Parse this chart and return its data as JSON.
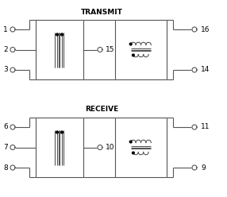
{
  "title_transmit": "TRANSMIT",
  "title_receive": "RECEIVE",
  "bg_color": "#ffffff",
  "line_color": "#555555",
  "text_color": "#000000",
  "dot_color": "#000000",
  "title_fontsize": 6.5,
  "label_fontsize": 6.5,
  "fig_w": 2.86,
  "fig_h": 2.48,
  "dpi": 100
}
